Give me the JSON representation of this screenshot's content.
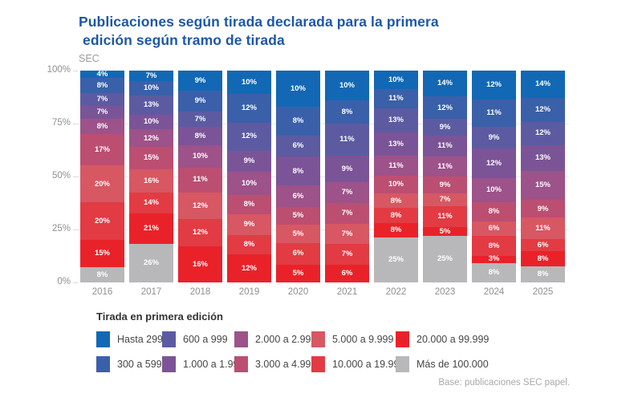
{
  "title": {
    "line1": "Publicaciones según tirada declarada para la primera",
    "line2": "edición según tramo de tirada"
  },
  "subtitle": "SEC",
  "theme": {
    "title_color": "#1d57a8",
    "axis_text_color": "#8f8f93",
    "grid_color": "#e9e9ec",
    "bar_label_color": "#ffffff"
  },
  "chart_data": {
    "type": "bar",
    "stacked": true,
    "percent_stacked": true,
    "title": "Publicaciones según tirada declarada para la primera edición según tramo de tirada",
    "xlabel": "",
    "ylabel": "",
    "ylim": [
      0,
      100
    ],
    "yticks": [
      "100%",
      "75%",
      "50%",
      "25%",
      "0%"
    ],
    "grid": true,
    "legend_position": "bottom",
    "categories": [
      "2016",
      "2017",
      "2018",
      "2019",
      "2020",
      "2021",
      "2022",
      "2023",
      "2024",
      "2025"
    ],
    "series": [
      {
        "name": "Hasta 299",
        "color": "#1268b4",
        "values": [
          4,
          7,
          9,
          10,
          10,
          10,
          10,
          14,
          12,
          14
        ]
      },
      {
        "name": "300 a 599",
        "color": "#3a60aa",
        "values": [
          8,
          10,
          9,
          12,
          8,
          8,
          11,
          12,
          11,
          12
        ]
      },
      {
        "name": "600 a 999",
        "color": "#5c5ba2",
        "values": [
          7,
          13,
          7,
          12,
          6,
          11,
          13,
          9,
          9,
          12
        ]
      },
      {
        "name": "1.000 a 1.999",
        "color": "#7b5497",
        "values": [
          7,
          10,
          8,
          9,
          8,
          9,
          13,
          11,
          12,
          13
        ]
      },
      {
        "name": "2.000 a 2.999",
        "color": "#9d5289",
        "values": [
          8,
          12,
          10,
          10,
          6,
          7,
          11,
          11,
          10,
          15
        ]
      },
      {
        "name": "3.000 a 4.999",
        "color": "#bc4e72",
        "values": [
          17,
          15,
          11,
          8,
          5,
          7,
          10,
          9,
          8,
          9
        ]
      },
      {
        "name": "5.000 a 9.999",
        "color": "#d75763",
        "values": [
          20,
          16,
          12,
          9,
          5,
          7,
          8,
          7,
          6,
          11
        ]
      },
      {
        "name": "10.000 a 19.999",
        "color": "#e23b43",
        "values": [
          20,
          14,
          12,
          8,
          6,
          7,
          8,
          11,
          8,
          6
        ]
      },
      {
        "name": "20.000 a 99.999",
        "color": "#e9222a",
        "values": [
          15,
          21,
          16,
          12,
          5,
          6,
          8,
          5,
          3,
          8
        ]
      },
      {
        "name": "Más de 100.000",
        "color": "#b8b7b9",
        "values": [
          8,
          26,
          null,
          null,
          null,
          null,
          25,
          25,
          8,
          8
        ]
      }
    ]
  },
  "legend": {
    "title": "Tirada en primera edición",
    "order": [
      0,
      2,
      4,
      6,
      8,
      1,
      3,
      5,
      7,
      9
    ]
  },
  "footer_note": "Base: publicaciones SEC papel."
}
